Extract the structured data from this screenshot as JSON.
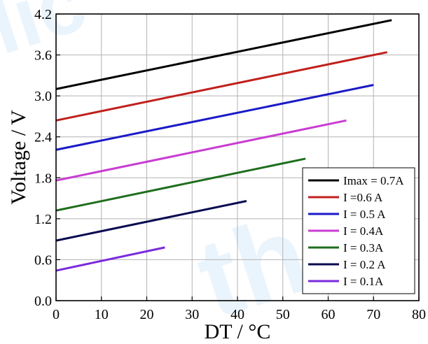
{
  "chart_data": {
    "type": "line",
    "title": "",
    "xlabel": "DT / °C",
    "ylabel": "Voltage / V",
    "xlim": [
      0,
      80
    ],
    "ylim": [
      0,
      4.2
    ],
    "xticks": [
      "0",
      "10",
      "20",
      "30",
      "40",
      "50",
      "60",
      "70",
      "80"
    ],
    "yticks": [
      "0.0",
      "0.6",
      "1.2",
      "1.8",
      "2.4",
      "3.0",
      "3.6",
      "4.2"
    ],
    "grid": true,
    "legend_position": "bottom-right",
    "series": [
      {
        "name": "Imax = 0.7A",
        "color": "#000000",
        "x": [
          0,
          74
        ],
        "y": [
          3.1,
          4.11
        ]
      },
      {
        "name": "I =0.6 A",
        "color": "#c0201c",
        "x": [
          0,
          73
        ],
        "y": [
          2.64,
          3.64
        ]
      },
      {
        "name": "I = 0.5 A",
        "color": "#1a1ac8",
        "x": [
          0,
          70
        ],
        "y": [
          2.21,
          3.16
        ]
      },
      {
        "name": "I = 0.4A",
        "color": "#c83cd2",
        "x": [
          0,
          64
        ],
        "y": [
          1.76,
          2.64
        ]
      },
      {
        "name": "I = 0.3A",
        "color": "#1e6e1e",
        "x": [
          0,
          55
        ],
        "y": [
          1.32,
          2.08
        ]
      },
      {
        "name": "I = 0.2 A",
        "color": "#0a0a50",
        "x": [
          0,
          42
        ],
        "y": [
          0.88,
          1.46
        ]
      },
      {
        "name": "I = 0.1A",
        "color": "#7a2adc",
        "x": [
          0,
          24
        ],
        "y": [
          0.44,
          0.78
        ]
      }
    ]
  },
  "watermark": {
    "text_1": "lic",
    "text_2": "the",
    "color": "#3da0f0"
  }
}
